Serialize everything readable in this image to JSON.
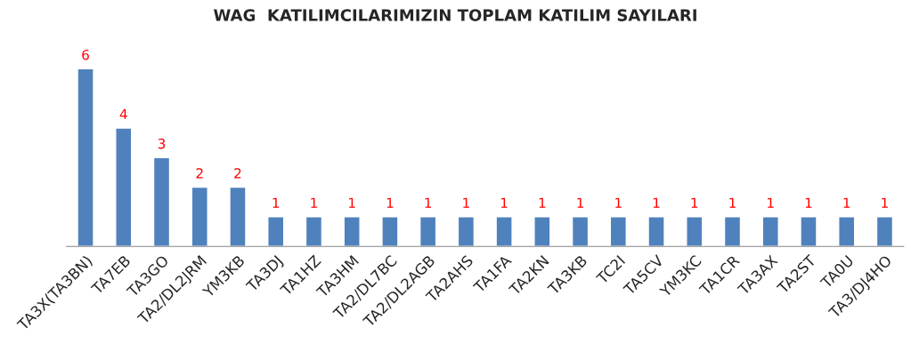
{
  "chart_data": {
    "type": "bar",
    "title": "WAG  KATILIMCILARIMIZIN TOPLAM KATILIM SAYILARI",
    "categories": [
      "TA3X(TA3BN)",
      "TA7EB",
      "TA3GO",
      "TA2/DL2JRM",
      "YM3KB",
      "TA3DJ",
      "TA1HZ",
      "TA3HM",
      "TA2/DL7BC",
      "TA2/DL2AGB",
      "TA2AHS",
      "TA1FA",
      "TA2KN",
      "TA3KB",
      "TC2I",
      "TA5CV",
      "YM3KC",
      "TA1CR",
      "TA3AX",
      "TA2ST",
      "TA0U",
      "TA3/DJ4HO"
    ],
    "values": [
      6,
      4,
      3,
      2,
      2,
      1,
      1,
      1,
      1,
      1,
      1,
      1,
      1,
      1,
      1,
      1,
      1,
      1,
      1,
      1,
      1,
      1
    ],
    "color": "#4f81bd",
    "data_labels": true,
    "tick_labels": "x",
    "grid": false,
    "legend": false
  }
}
